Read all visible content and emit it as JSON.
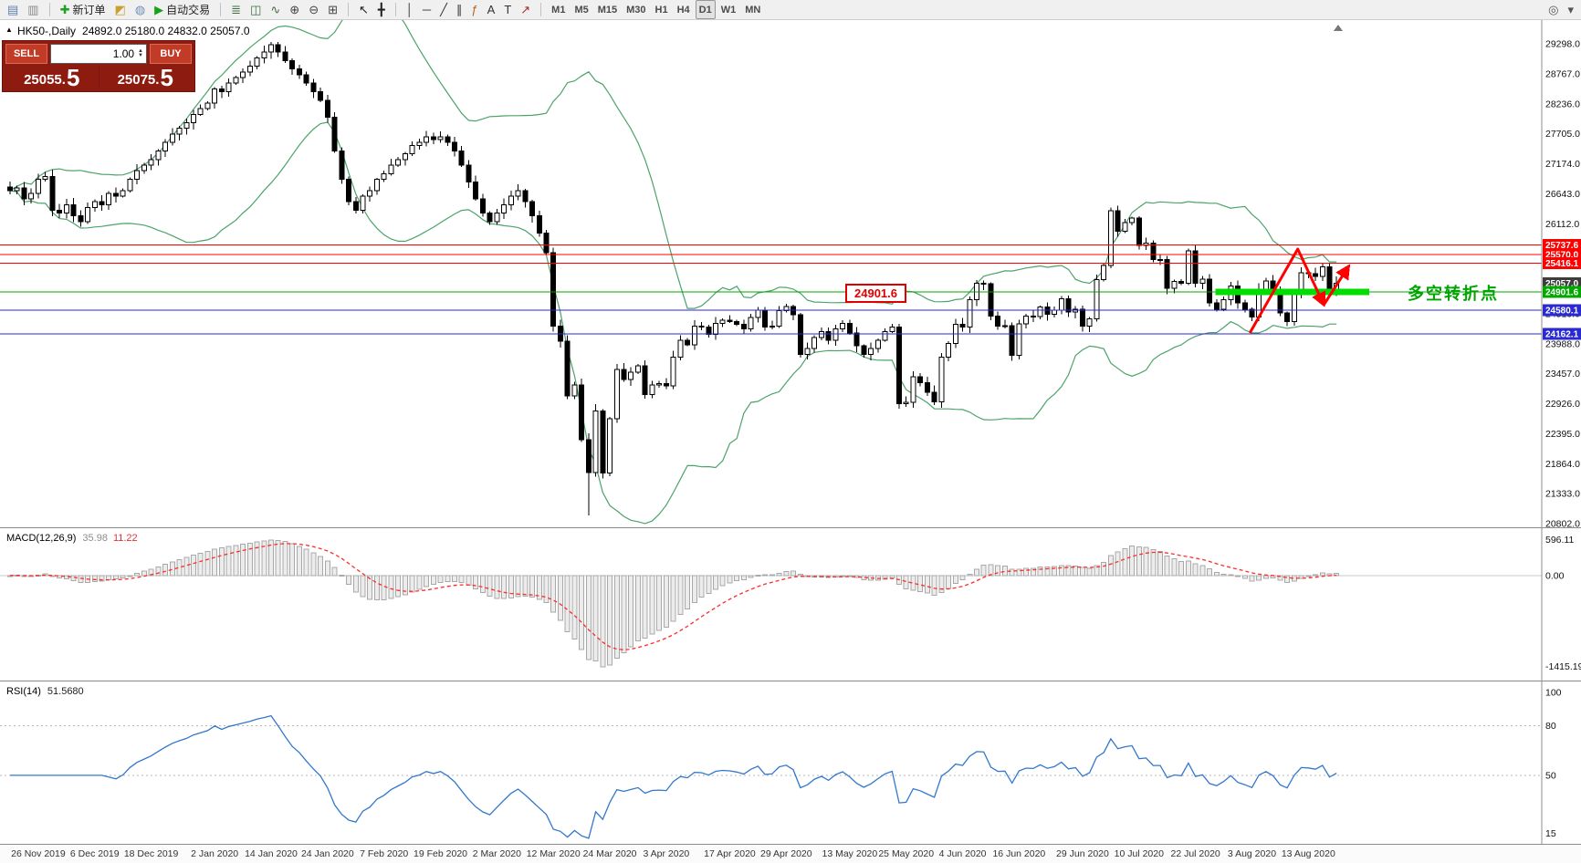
{
  "toolbar": {
    "groups": [
      {
        "name": "charts-group",
        "items": [
          {
            "name": "new-chart-icon",
            "glyph": "▤",
            "color": "#5b7fae"
          },
          {
            "name": "profiles-icon",
            "glyph": "▥",
            "color": "#8a8a8a"
          }
        ]
      },
      {
        "name": "trade-group",
        "items": [
          {
            "name": "new-order-button",
            "glyph": "✚",
            "color": "#1fa11f",
            "label": "新订单"
          },
          {
            "name": "marketwatch-icon",
            "glyph": "◩",
            "color": "#c8a030"
          },
          {
            "name": "data-window-icon",
            "glyph": "◍",
            "color": "#7090b8"
          },
          {
            "name": "autotrading-button",
            "glyph": "▶",
            "color": "#17a317",
            "label": "自动交易"
          }
        ]
      },
      {
        "name": "chart-type-group",
        "items": [
          {
            "name": "bar-chart-icon",
            "glyph": "≣",
            "color": "#3c6e3c"
          },
          {
            "name": "candlestick-chart-icon",
            "glyph": "◫",
            "color": "#3c6e3c"
          },
          {
            "name": "line-chart-icon",
            "glyph": "∿",
            "color": "#3c6e3c"
          },
          {
            "name": "zoom-in-icon",
            "glyph": "⊕",
            "color": "#444444"
          },
          {
            "name": "zoom-out-icon",
            "glyph": "⊖",
            "color": "#444444"
          },
          {
            "name": "tile-windows-icon",
            "glyph": "⊞",
            "color": "#444444"
          }
        ]
      },
      {
        "name": "cursor-group",
        "items": [
          {
            "name": "cursor-icon",
            "glyph": "↖",
            "color": "#222222"
          },
          {
            "name": "crosshair-icon",
            "glyph": "╋",
            "color": "#222222"
          }
        ]
      },
      {
        "name": "drawing-group",
        "items": [
          {
            "name": "vertical-line-icon",
            "glyph": "│",
            "color": "#333333"
          },
          {
            "name": "horizontal-line-icon",
            "glyph": "─",
            "color": "#333333"
          },
          {
            "name": "trendline-icon",
            "glyph": "╱",
            "color": "#333333"
          },
          {
            "name": "channel-icon",
            "glyph": "∥",
            "color": "#333333"
          },
          {
            "name": "fibonacci-icon",
            "glyph": "ƒ",
            "color": "#c06018"
          },
          {
            "name": "text-icon",
            "glyph": "A",
            "color": "#333333"
          },
          {
            "name": "label-icon",
            "glyph": "T",
            "color": "#333333"
          },
          {
            "name": "arrows-tool-icon",
            "glyph": "↗",
            "color": "#a03030"
          }
        ]
      },
      {
        "name": "timeframe-group",
        "items": [
          {
            "name": "tf-m1",
            "label": "M1"
          },
          {
            "name": "tf-m5",
            "label": "M5"
          },
          {
            "name": "tf-m15",
            "label": "M15"
          },
          {
            "name": "tf-m30",
            "label": "M30"
          },
          {
            "name": "tf-h1",
            "label": "H1"
          },
          {
            "name": "tf-h4",
            "label": "H4"
          },
          {
            "name": "tf-d1",
            "label": "D1",
            "active": true
          },
          {
            "name": "tf-w1",
            "label": "W1"
          },
          {
            "name": "tf-mn",
            "label": "MN"
          }
        ]
      },
      {
        "name": "right-group",
        "right": true,
        "items": [
          {
            "name": "search-icon",
            "glyph": "◎",
            "color": "#555555"
          },
          {
            "name": "more-icon",
            "glyph": "▾",
            "color": "#555555"
          }
        ]
      }
    ]
  },
  "quote_panel": {
    "sell_label": "SELL",
    "buy_label": "BUY",
    "volume": "1.00",
    "sell_price_main": "25055.",
    "sell_price_big": "5",
    "buy_price_main": "25075.",
    "buy_price_big": "5"
  },
  "chart": {
    "title_symbol": "HK50-,Daily",
    "title_ohlc": "24892.0 25180.0 24832.0 25057.0",
    "callout_label": "24901.6",
    "annotation_text": "多空转折点",
    "colors": {
      "up": "#ffffff",
      "down": "#000000",
      "outline": "#000000",
      "bollinger": "#4ca36a",
      "resistance": "#ff0000",
      "support": "#2a2ad0",
      "pivot": "#00a800",
      "band": "#00dd00",
      "annotation": "#00a400",
      "macd_hist_fill": "#ececec",
      "macd_hist_edge": "#a8a8a8",
      "macd_signal": "#ff2a2a",
      "rsi": "#3377cc",
      "level_dotted": "#b8b8b8"
    }
  },
  "chart_data": {
    "type": "candlestick",
    "symbol": "HK50-",
    "timeframe": "Daily",
    "last_ohlc": {
      "open": 24892.0,
      "high": 25180.0,
      "low": 24832.0,
      "close": 25057.0
    },
    "price_axis": {
      "min": 20802.0,
      "max": 29298.0,
      "tick_step": 531.0
    },
    "closes": [
      26700,
      26750,
      26550,
      26650,
      26900,
      26950,
      26350,
      26300,
      26450,
      26250,
      26150,
      26400,
      26500,
      26450,
      26650,
      26600,
      26700,
      26900,
      27050,
      27150,
      27250,
      27400,
      27550,
      27700,
      27800,
      27900,
      28050,
      28150,
      28250,
      28500,
      28450,
      28600,
      28700,
      28800,
      28900,
      29050,
      29150,
      29280,
      29150,
      29000,
      28850,
      28750,
      28600,
      28450,
      28300,
      28000,
      27400,
      26900,
      26500,
      26350,
      26600,
      26700,
      26900,
      27000,
      27150,
      27250,
      27350,
      27500,
      27550,
      27650,
      27600,
      27650,
      27550,
      27400,
      27150,
      26850,
      26550,
      26300,
      26150,
      26300,
      26450,
      26600,
      26700,
      26500,
      26250,
      25950,
      25600,
      24300,
      24030,
      23060,
      23260,
      22290,
      21710,
      22800,
      21700,
      22660,
      23530,
      23350,
      23480,
      23600,
      23090,
      23260,
      23280,
      23240,
      23750,
      24050,
      23970,
      24300,
      24280,
      24150,
      24350,
      24400,
      24380,
      24330,
      24250,
      24450,
      24580,
      24280,
      24300,
      24575,
      24644,
      24500,
      23800,
      23900,
      24100,
      24200,
      24050,
      24250,
      24350,
      24180,
      23950,
      23800,
      23900,
      24050,
      24200,
      24280,
      22930,
      22950,
      23400,
      23300,
      23130,
      22960,
      23750,
      23990,
      24330,
      24280,
      24770,
      25060,
      25050,
      24480,
      24300,
      24310,
      23780,
      24340,
      24480,
      24465,
      24640,
      24510,
      24580,
      24780,
      24550,
      24600,
      24300,
      24430,
      25120,
      25370,
      26340,
      25980,
      26130,
      26210,
      25730,
      25770,
      25480,
      25480,
      24970,
      25090,
      25060,
      25635,
      25060,
      25130,
      24710,
      24600,
      24770,
      25010,
      24710,
      24595,
      24460,
      24950,
      25100,
      24930,
      24530,
      24380,
      24890,
      25245,
      25230,
      25180,
      25350,
      24900,
      25057
    ],
    "notable": {
      "highest_high": 29330,
      "highest_idx": 37,
      "lowest_low": 20950,
      "lowest_idx": 82
    },
    "x_labels": [
      [
        4,
        "26 Nov 2019"
      ],
      [
        12,
        "6 Dec 2019"
      ],
      [
        20,
        "18 Dec 2019"
      ],
      [
        29,
        "2 Jan 2020"
      ],
      [
        37,
        "14 Jan 2020"
      ],
      [
        45,
        "24 Jan 2020"
      ],
      [
        53,
        "7 Feb 2020"
      ],
      [
        61,
        "19 Feb 2020"
      ],
      [
        69,
        "2 Mar 2020"
      ],
      [
        77,
        "12 Mar 2020"
      ],
      [
        85,
        "24 Mar 2020"
      ],
      [
        93,
        "3 Apr 2020"
      ],
      [
        102,
        "17 Apr 2020"
      ],
      [
        110,
        "29 Apr 2020"
      ],
      [
        119,
        "13 May 2020"
      ],
      [
        127,
        "25 May 2020"
      ],
      [
        135,
        "4 Jun 2020"
      ],
      [
        143,
        "16 Jun 2020"
      ],
      [
        152,
        "29 Jun 2020"
      ],
      [
        160,
        "10 Jul 2020"
      ],
      [
        168,
        "22 Jul 2020"
      ],
      [
        176,
        "3 Aug 2020"
      ],
      [
        184,
        "13 Aug 2020"
      ]
    ],
    "levels": [
      {
        "name": "resistance-1",
        "price": 25737.6,
        "color": "#ff0000",
        "style": "solid"
      },
      {
        "name": "resistance-2",
        "price": 25570.0,
        "color": "#ff0000",
        "style": "solid"
      },
      {
        "name": "resistance-3",
        "price": 25416.1,
        "color": "#ff0000",
        "style": "solid"
      },
      {
        "name": "current-price",
        "price": 25057.0,
        "color": "#3c3c3c",
        "style": "label-only"
      },
      {
        "name": "pivot-line",
        "price": 24901.6,
        "color": "#00a800",
        "style": "solid"
      },
      {
        "name": "support-1",
        "price": 24580.1,
        "color": "#2a2ad0",
        "style": "solid"
      },
      {
        "name": "support-2",
        "price": 24162.1,
        "color": "#2a2ad0",
        "style": "solid"
      }
    ],
    "pivot_band": {
      "price": 24901.6,
      "from_idx": 171.2,
      "to_idx": 193.0,
      "thickness": 7
    },
    "zigzag": [
      [
        175.7,
        24178
      ],
      [
        182.5,
        25664
      ],
      [
        186.2,
        24678
      ],
      [
        189.7,
        25357
      ]
    ],
    "indicators": {
      "bollinger": {
        "period": 20,
        "deviation": 2
      },
      "macd": {
        "label": "MACD(12,26,9)",
        "fast": 12,
        "slow": 26,
        "signal": 9,
        "value_main": "35.98",
        "value_signal": "11.22",
        "axis_labels": [
          "596.11",
          "0.00",
          "-1415.19"
        ]
      },
      "rsi": {
        "label": "RSI(14)",
        "period": 14,
        "value": "51.5680",
        "axis_labels": [
          100,
          80,
          50,
          15
        ],
        "levels": [
          80,
          50
        ]
      }
    }
  }
}
